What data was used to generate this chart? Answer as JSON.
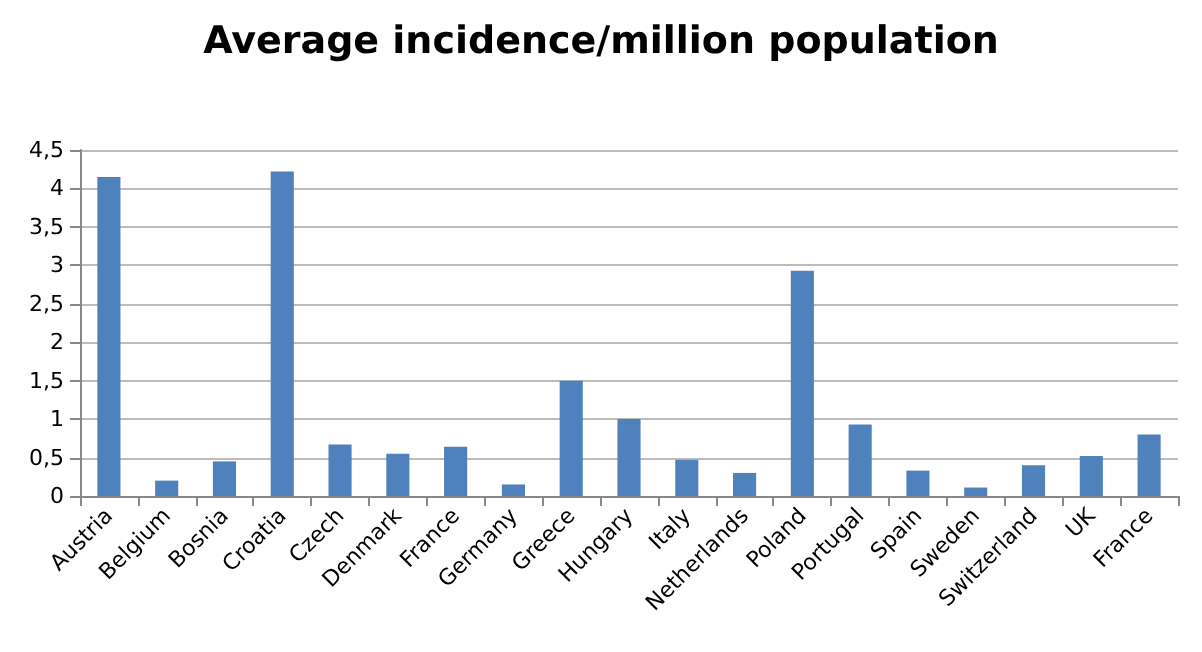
{
  "chart_data": {
    "type": "bar",
    "title": "Average incidence/million population",
    "categories": [
      "Austria",
      "Belgium",
      "Bosnia",
      "Croatia",
      "Czech",
      "Denmark",
      "France",
      "Germany",
      "Greece",
      "Hungary",
      "Italy",
      "Netherlands",
      "Poland",
      "Portugal",
      "Spain",
      "Sweden",
      "Switzerland",
      "UK",
      "France"
    ],
    "values": [
      4.15,
      0.2,
      0.45,
      4.22,
      0.67,
      0.55,
      0.64,
      0.15,
      1.5,
      1.0,
      0.47,
      0.3,
      2.93,
      0.93,
      0.33,
      0.11,
      0.4,
      0.52,
      0.8
    ],
    "color": "#4f81bd",
    "ylim": [
      0,
      4.5
    ],
    "yticks": [
      0,
      {
        "value": 0.5,
        "label": "0,5"
      },
      1,
      {
        "value": 1.5,
        "label": "1,5"
      },
      2,
      {
        "value": 2.5,
        "label": "2,5"
      },
      3,
      {
        "value": 3.5,
        "label": "3,5"
      },
      4,
      {
        "value": 4.5,
        "label": "4,5"
      }
    ],
    "grid": "y"
  }
}
